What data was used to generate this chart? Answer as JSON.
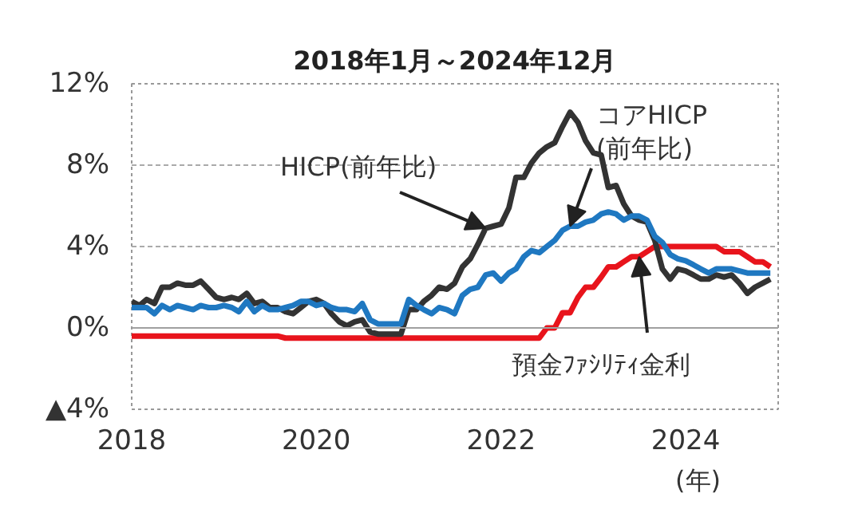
{
  "chart_data": {
    "type": "line",
    "title": "2018年1月～2024年12月",
    "xlabel": "(年)",
    "x": [
      "2018-01",
      "2018-02",
      "2018-03",
      "2018-04",
      "2018-05",
      "2018-06",
      "2018-07",
      "2018-08",
      "2018-09",
      "2018-10",
      "2018-11",
      "2018-12",
      "2019-01",
      "2019-02",
      "2019-03",
      "2019-04",
      "2019-05",
      "2019-06",
      "2019-07",
      "2019-08",
      "2019-09",
      "2019-10",
      "2019-11",
      "2019-12",
      "2020-01",
      "2020-02",
      "2020-03",
      "2020-04",
      "2020-05",
      "2020-06",
      "2020-07",
      "2020-08",
      "2020-09",
      "2020-10",
      "2020-11",
      "2020-12",
      "2021-01",
      "2021-02",
      "2021-03",
      "2021-04",
      "2021-05",
      "2021-06",
      "2021-07",
      "2021-08",
      "2021-09",
      "2021-10",
      "2021-11",
      "2021-12",
      "2022-01",
      "2022-02",
      "2022-03",
      "2022-04",
      "2022-05",
      "2022-06",
      "2022-07",
      "2022-08",
      "2022-09",
      "2022-10",
      "2022-11",
      "2022-12",
      "2023-01",
      "2023-02",
      "2023-03",
      "2023-04",
      "2023-05",
      "2023-06",
      "2023-07",
      "2023-08",
      "2023-09",
      "2023-10",
      "2023-11",
      "2023-12",
      "2024-01",
      "2024-02",
      "2024-03",
      "2024-04",
      "2024-05",
      "2024-06",
      "2024-07",
      "2024-08",
      "2024-09",
      "2024-10",
      "2024-11",
      "2024-12"
    ],
    "series": [
      {
        "name": "預金ﾌｧｼﾘﾃｨ金利",
        "color": "#e8141c",
        "values": [
          -0.4,
          -0.4,
          -0.4,
          -0.4,
          -0.4,
          -0.4,
          -0.4,
          -0.4,
          -0.4,
          -0.4,
          -0.4,
          -0.4,
          -0.4,
          -0.4,
          -0.4,
          -0.4,
          -0.4,
          -0.4,
          -0.4,
          -0.4,
          -0.5,
          -0.5,
          -0.5,
          -0.5,
          -0.5,
          -0.5,
          -0.5,
          -0.5,
          -0.5,
          -0.5,
          -0.5,
          -0.5,
          -0.5,
          -0.5,
          -0.5,
          -0.5,
          -0.5,
          -0.5,
          -0.5,
          -0.5,
          -0.5,
          -0.5,
          -0.5,
          -0.5,
          -0.5,
          -0.5,
          -0.5,
          -0.5,
          -0.5,
          -0.5,
          -0.5,
          -0.5,
          -0.5,
          -0.5,
          0.0,
          0.0,
          0.75,
          0.75,
          1.5,
          2.0,
          2.0,
          2.5,
          3.0,
          3.0,
          3.25,
          3.5,
          3.5,
          3.75,
          4.0,
          4.0,
          4.0,
          4.0,
          4.0,
          4.0,
          4.0,
          4.0,
          4.0,
          3.75,
          3.75,
          3.75,
          3.5,
          3.25,
          3.25,
          3.0
        ]
      },
      {
        "name": "HICP(前年比)",
        "color": "#333333",
        "values": [
          1.3,
          1.1,
          1.4,
          1.2,
          2.0,
          2.0,
          2.2,
          2.1,
          2.1,
          2.3,
          1.9,
          1.5,
          1.4,
          1.5,
          1.4,
          1.7,
          1.2,
          1.3,
          1.0,
          1.0,
          0.8,
          0.7,
          1.0,
          1.3,
          1.4,
          1.2,
          0.7,
          0.3,
          0.1,
          0.3,
          0.4,
          -0.2,
          -0.3,
          -0.3,
          -0.3,
          -0.3,
          0.9,
          0.9,
          1.3,
          1.6,
          2.0,
          1.9,
          2.2,
          3.0,
          3.4,
          4.1,
          4.9,
          5.0,
          5.1,
          5.9,
          7.4,
          7.4,
          8.1,
          8.6,
          8.9,
          9.1,
          9.9,
          10.6,
          10.1,
          9.2,
          8.6,
          8.5,
          6.9,
          7.0,
          6.1,
          5.5,
          5.3,
          5.2,
          4.3,
          2.9,
          2.4,
          2.9,
          2.8,
          2.6,
          2.4,
          2.4,
          2.6,
          2.5,
          2.6,
          2.2,
          1.7,
          2.0,
          2.2,
          2.4
        ]
      },
      {
        "name": "コアHICP\n(前年比)",
        "color": "#1f78c1",
        "values": [
          1.0,
          1.0,
          1.0,
          0.7,
          1.1,
          0.9,
          1.1,
          1.0,
          0.9,
          1.1,
          1.0,
          1.0,
          1.1,
          1.0,
          0.8,
          1.3,
          0.8,
          1.1,
          0.9,
          0.9,
          1.0,
          1.1,
          1.3,
          1.3,
          1.1,
          1.2,
          1.0,
          0.9,
          0.9,
          0.8,
          1.2,
          0.4,
          0.2,
          0.2,
          0.2,
          0.2,
          1.4,
          1.1,
          0.9,
          0.7,
          1.0,
          0.9,
          0.7,
          1.6,
          1.9,
          2.0,
          2.6,
          2.7,
          2.3,
          2.7,
          2.9,
          3.5,
          3.8,
          3.7,
          4.0,
          4.3,
          4.8,
          5.0,
          5.0,
          5.2,
          5.3,
          5.6,
          5.7,
          5.6,
          5.3,
          5.5,
          5.5,
          5.3,
          4.5,
          4.2,
          3.6,
          3.4,
          3.3,
          3.1,
          2.9,
          2.7,
          2.9,
          2.9,
          2.9,
          2.8,
          2.7,
          2.7,
          2.7,
          2.7
        ]
      }
    ],
    "xlim": [
      "2018-01",
      "2025-01"
    ],
    "xticks": [
      "2018",
      "2020",
      "2022",
      "2024"
    ],
    "ylim": [
      -4,
      12
    ],
    "yticks": [
      {
        "value": -4,
        "label": "▲4%"
      },
      {
        "value": 0,
        "label": "0%"
      },
      {
        "value": 4,
        "label": "4%"
      },
      {
        "value": 8,
        "label": "8%"
      },
      {
        "value": 12,
        "label": "12%"
      }
    ],
    "ref_lines": [
      {
        "axis": "y",
        "value": 0,
        "line_style": "solid",
        "color": "#a0a0a0"
      }
    ],
    "grid": "y",
    "marker": "none",
    "line_style": "solid"
  }
}
